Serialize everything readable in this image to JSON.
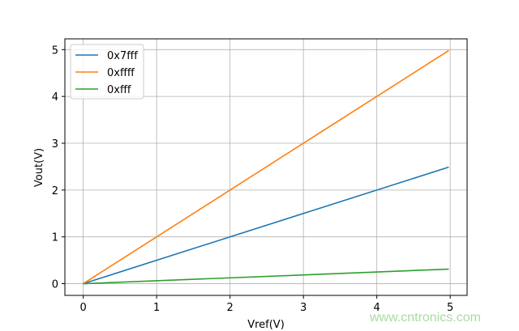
{
  "chart_data": {
    "type": "line",
    "title": "",
    "xlabel": "Vref(V)",
    "ylabel": "Vout(V)",
    "xlim": [
      -0.25,
      5.23
    ],
    "ylim": [
      -0.25,
      5.23
    ],
    "xticks": [
      "0",
      "1",
      "2",
      "3",
      "4",
      "5"
    ],
    "yticks": [
      "0",
      "1",
      "2",
      "3",
      "4",
      "5"
    ],
    "grid": true,
    "legend_position": "top-left",
    "series": [
      {
        "name": "0x7fff",
        "color": "#1f77b4",
        "x": [
          0,
          4.98
        ],
        "y": [
          0,
          2.49
        ]
      },
      {
        "name": "0xffff",
        "color": "#ff7f0e",
        "x": [
          0,
          4.98
        ],
        "y": [
          0,
          4.98
        ]
      },
      {
        "name": "0xfff",
        "color": "#2ca02c",
        "x": [
          0,
          4.98
        ],
        "y": [
          0,
          0.311
        ]
      }
    ]
  },
  "watermark": "www.cntronics.com"
}
